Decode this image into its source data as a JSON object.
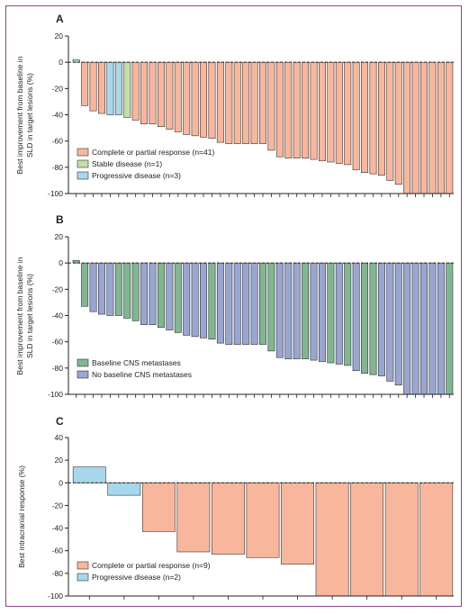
{
  "colors": {
    "orange": "#f8b79c",
    "green": "#c4dfa8",
    "blue": "#a8d6ea",
    "teal": "#80b792",
    "purple": "#9aa6d2",
    "frame": "#8c4a8c",
    "axis": "#222222"
  },
  "chart_data": [
    {
      "panel": "A",
      "type": "bar",
      "ylabel": [
        "Best improvement from baseline in",
        "SLD in target lesions (%)"
      ],
      "ylim": [
        -100,
        20
      ],
      "yticks": [
        20,
        0,
        -20,
        -40,
        -60,
        -80,
        -100
      ],
      "legend": [
        {
          "key": "cpr",
          "label": "Complete or partial response (n=41)",
          "color": "#f8b79c"
        },
        {
          "key": "sd",
          "label": "Stable disease (n=1)",
          "color": "#c4dfa8"
        },
        {
          "key": "pd",
          "label": "Progressive disease (n=3)",
          "color": "#a8d6ea"
        }
      ],
      "legend_position": "bottom-left",
      "values": [
        2,
        -33,
        -37,
        -39,
        -40,
        -40,
        -42,
        -44,
        -47,
        -47,
        -49,
        -51,
        -53,
        -55,
        -56,
        -57,
        -58,
        -61,
        -62,
        -62,
        -62,
        -62,
        -62,
        -67,
        -72,
        -73,
        -73,
        -73,
        -74,
        -75,
        -76,
        -77,
        -78,
        -82,
        -84,
        -85,
        -86,
        -90,
        -93,
        -100,
        -100,
        -100,
        -100,
        -100,
        -100
      ],
      "groups": [
        "pd",
        "cpr",
        "cpr",
        "cpr",
        "pd",
        "pd",
        "sd",
        "cpr",
        "cpr",
        "cpr",
        "cpr",
        "cpr",
        "cpr",
        "cpr",
        "cpr",
        "cpr",
        "cpr",
        "cpr",
        "cpr",
        "cpr",
        "cpr",
        "cpr",
        "cpr",
        "cpr",
        "cpr",
        "cpr",
        "cpr",
        "cpr",
        "cpr",
        "cpr",
        "cpr",
        "cpr",
        "cpr",
        "cpr",
        "cpr",
        "cpr",
        "cpr",
        "cpr",
        "cpr",
        "cpr",
        "cpr",
        "cpr",
        "cpr",
        "cpr",
        "cpr"
      ]
    },
    {
      "panel": "B",
      "type": "bar",
      "ylabel": [
        "Best improvement from baseline in",
        "SLD in target lesions (%)"
      ],
      "ylim": [
        -100,
        20
      ],
      "yticks": [
        20,
        0,
        -20,
        -40,
        -60,
        -80,
        -100
      ],
      "legend": [
        {
          "key": "cns",
          "label": "Baseline CNS metastases",
          "color": "#80b792"
        },
        {
          "key": "nocns",
          "label": "No baseline CNS metastases",
          "color": "#9aa6d2"
        }
      ],
      "legend_position": "bottom-left",
      "values": [
        2,
        -33,
        -37,
        -39,
        -40,
        -40,
        -42,
        -44,
        -47,
        -47,
        -49,
        -51,
        -53,
        -55,
        -56,
        -57,
        -58,
        -61,
        -62,
        -62,
        -62,
        -62,
        -62,
        -67,
        -72,
        -73,
        -73,
        -73,
        -74,
        -75,
        -76,
        -77,
        -78,
        -82,
        -84,
        -85,
        -86,
        -90,
        -93,
        -100,
        -100,
        -100,
        -100,
        -100,
        -100
      ],
      "groups": [
        "cns",
        "cns",
        "nocns",
        "nocns",
        "nocns",
        "cns",
        "cns",
        "cns",
        "nocns",
        "nocns",
        "cns",
        "nocns",
        "cns",
        "nocns",
        "nocns",
        "nocns",
        "cns",
        "nocns",
        "nocns",
        "nocns",
        "nocns",
        "nocns",
        "cns",
        "cns",
        "nocns",
        "nocns",
        "nocns",
        "cns",
        "nocns",
        "nocns",
        "cns",
        "nocns",
        "cns",
        "nocns",
        "cns",
        "cns",
        "nocns",
        "nocns",
        "nocns",
        "nocns",
        "nocns",
        "nocns",
        "nocns",
        "nocns",
        "cns"
      ]
    },
    {
      "panel": "C",
      "type": "bar",
      "ylabel": [
        "Best intracranial response (%)"
      ],
      "ylim": [
        -100,
        40
      ],
      "yticks": [
        40,
        20,
        0,
        -20,
        -40,
        -60,
        -80,
        -100
      ],
      "legend": [
        {
          "key": "cpr",
          "label": "Complete or partial response (n=9)",
          "color": "#f8b79c"
        },
        {
          "key": "pd",
          "label": "Progressive disease (n=2)",
          "color": "#a8d6ea"
        }
      ],
      "legend_position": "bottom-left",
      "values": [
        14,
        -11,
        -43,
        -61,
        -63,
        -66,
        -72,
        -100,
        -100,
        -100,
        -100
      ],
      "groups": [
        "pd",
        "pd",
        "cpr",
        "cpr",
        "cpr",
        "cpr",
        "cpr",
        "cpr",
        "cpr",
        "cpr",
        "cpr"
      ]
    }
  ]
}
